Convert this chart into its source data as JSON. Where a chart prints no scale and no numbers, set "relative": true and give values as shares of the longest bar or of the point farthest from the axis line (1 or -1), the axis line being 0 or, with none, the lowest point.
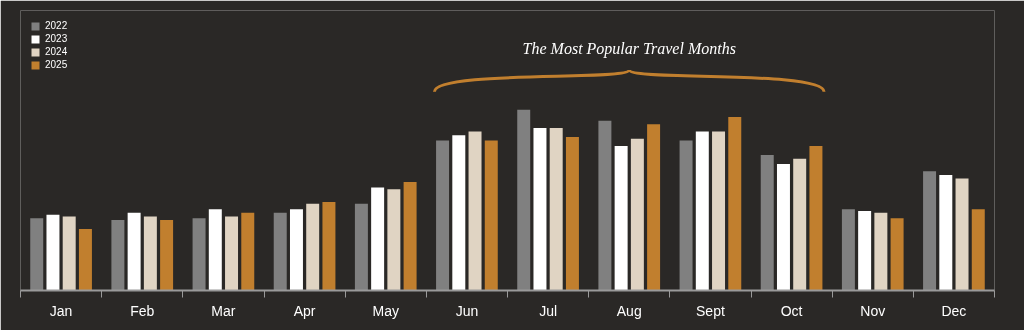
{
  "chart_data": {
    "type": "bar",
    "relative": true,
    "categories": [
      "Jan",
      "Feb",
      "Mar",
      "Apr",
      "May",
      "Jun",
      "Jul",
      "Aug",
      "Sept",
      "Oct",
      "Nov",
      "Dec"
    ],
    "series": [
      {
        "name": "2022",
        "color": "#808080",
        "values": [
          0.4,
          0.39,
          0.4,
          0.43,
          0.48,
          0.83,
          1.0,
          0.94,
          0.83,
          0.75,
          0.45,
          0.66
        ]
      },
      {
        "name": "2023",
        "color": "#ffffff",
        "values": [
          0.42,
          0.43,
          0.45,
          0.45,
          0.57,
          0.86,
          0.9,
          0.8,
          0.88,
          0.7,
          0.44,
          0.64
        ]
      },
      {
        "name": "2024",
        "color": "#e0d4c3",
        "values": [
          0.41,
          0.41,
          0.41,
          0.48,
          0.56,
          0.88,
          0.9,
          0.84,
          0.88,
          0.73,
          0.43,
          0.62
        ]
      },
      {
        "name": "2025",
        "color": "#c17f2e",
        "values": [
          0.34,
          0.39,
          0.43,
          0.49,
          0.6,
          0.83,
          0.85,
          0.92,
          0.96,
          0.8,
          0.4,
          0.45
        ]
      }
    ],
    "annotations": [
      "The Most Popular Travel Months"
    ],
    "legend": "top left",
    "grid": false
  }
}
